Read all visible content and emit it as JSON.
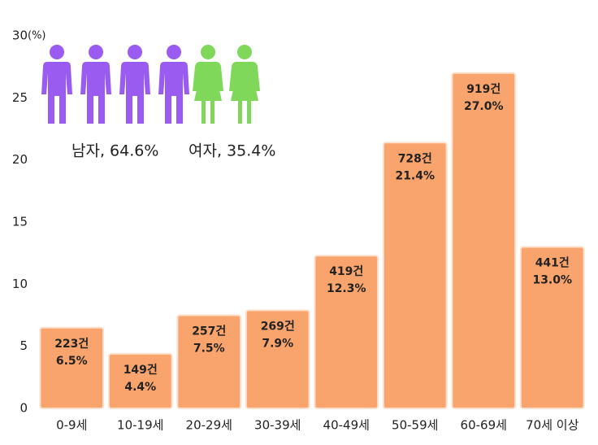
{
  "chart_data": {
    "type": "bar",
    "y_label": "(%)",
    "categories": [
      "0-9세",
      "10-19세",
      "20-29세",
      "30-39세",
      "40-49세",
      "50-59세",
      "60-69세",
      "70세 이상"
    ],
    "values": [
      6.5,
      4.4,
      7.5,
      7.9,
      12.3,
      21.4,
      27.0,
      13.0
    ],
    "value_labels": [
      "6.5%",
      "4.4%",
      "7.5%",
      "7.9%",
      "12.3%",
      "21.4%",
      "27.0%",
      "13.0%"
    ],
    "count_labels": [
      "223건",
      "149건",
      "257건",
      "269건",
      "419건",
      "728건",
      "919건",
      "441건"
    ],
    "color": "#f9a46c",
    "ylim": [
      0,
      30
    ],
    "yticks": [
      0,
      5,
      10,
      15,
      20,
      25,
      30
    ],
    "annotations": [
      "남자, 64.6%",
      "여자, 35.4%"
    ]
  }
}
